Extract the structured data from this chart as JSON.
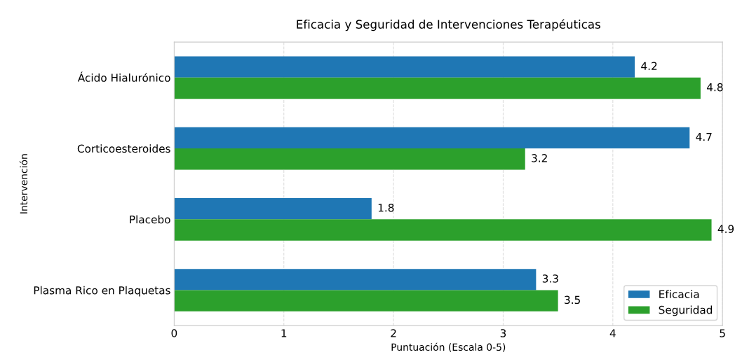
{
  "chart_data": {
    "type": "bar",
    "orientation": "horizontal",
    "title": "Eficacia y Seguridad de Intervenciones Terapéuticas",
    "xlabel": "Puntuación (Escala 0-5)",
    "ylabel": "Intervención",
    "categories": [
      "Ácido Hialurónico",
      "Corticoesteroides",
      "Placebo",
      "Plasma Rico en Plaquetas"
    ],
    "series": [
      {
        "name": "Eficacia",
        "color": "#1f77b4",
        "values": [
          4.2,
          4.7,
          1.8,
          3.3
        ]
      },
      {
        "name": "Seguridad",
        "color": "#2ca02c",
        "values": [
          4.8,
          3.2,
          4.9,
          3.5
        ]
      }
    ],
    "xlim": [
      0,
      5
    ],
    "xticks": [
      0,
      1,
      2,
      3,
      4,
      5
    ],
    "grid": "x",
    "legend": "bottom right",
    "data_labels": true
  }
}
